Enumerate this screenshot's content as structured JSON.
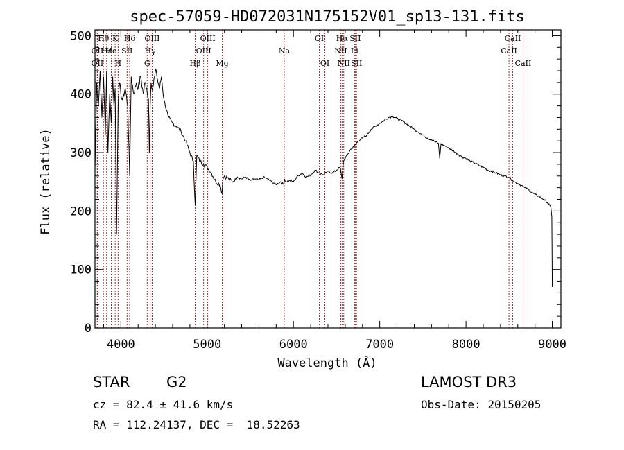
{
  "chart_data": {
    "type": "line",
    "title": "spec-57059-HD072031N175152V01_sp13-131.fits",
    "xlabel": "Wavelength (Å)",
    "ylabel": "Flux (relative)",
    "xlim": [
      3700,
      9100
    ],
    "ylim": [
      0,
      510
    ],
    "xticks": [
      4000,
      5000,
      6000,
      7000,
      8000,
      9000
    ],
    "yticks": [
      0,
      100,
      200,
      300,
      400,
      500
    ],
    "xtick_labels": [
      "4000",
      "5000",
      "6000",
      "7000",
      "8000",
      "9000"
    ],
    "ytick_labels": [
      "0",
      "100",
      "200",
      "300",
      "400",
      "500"
    ],
    "series": [
      {
        "name": "flux",
        "x": [
          3700,
          3720,
          3740,
          3760,
          3780,
          3800,
          3820,
          3835,
          3850,
          3870,
          3889,
          3905,
          3920,
          3934,
          3950,
          3968,
          3985,
          4000,
          4020,
          4050,
          4080,
          4102,
          4120,
          4150,
          4180,
          4200,
          4230,
          4260,
          4280,
          4300,
          4320,
          4330,
          4340,
          4350,
          4370,
          4390,
          4410,
          4430,
          4450,
          4470,
          4500,
          4550,
          4600,
          4650,
          4700,
          4750,
          4800,
          4840,
          4861,
          4880,
          4920,
          4960,
          5000,
          5050,
          5100,
          5150,
          5172,
          5183,
          5200,
          5250,
          5300,
          5350,
          5400,
          5450,
          5500,
          5550,
          5600,
          5650,
          5700,
          5750,
          5800,
          5850,
          5890,
          5896,
          5910,
          5950,
          6000,
          6050,
          6100,
          6150,
          6200,
          6250,
          6300,
          6350,
          6400,
          6450,
          6500,
          6540,
          6563,
          6580,
          6620,
          6660,
          6700,
          6750,
          6800,
          6850,
          6900,
          6950,
          7000,
          7050,
          7100,
          7150,
          7200,
          7250,
          7300,
          7350,
          7400,
          7450,
          7500,
          7550,
          7600,
          7650,
          7680,
          7695,
          7710,
          7750,
          7800,
          7850,
          7900,
          7950,
          8000,
          8050,
          8100,
          8150,
          8200,
          8250,
          8300,
          8350,
          8400,
          8450,
          8498,
          8520,
          8542,
          8560,
          8600,
          8640,
          8662,
          8680,
          8720,
          8760,
          8800,
          8850,
          8900,
          8940,
          8970,
          8985,
          8995,
          9000
        ],
        "values": [
          270,
          420,
          380,
          440,
          360,
          430,
          330,
          440,
          300,
          400,
          350,
          430,
          380,
          410,
          160,
          380,
          420,
          400,
          390,
          410,
          380,
          260,
          430,
          400,
          420,
          410,
          430,
          400,
          420,
          410,
          390,
          300,
          380,
          420,
          410,
          430,
          440,
          420,
          410,
          430,
          390,
          360,
          350,
          345,
          335,
          320,
          300,
          285,
          210,
          295,
          285,
          280,
          275,
          265,
          250,
          245,
          230,
          255,
          260,
          255,
          250,
          258,
          255,
          258,
          252,
          255,
          253,
          258,
          255,
          250,
          245,
          250,
          245,
          255,
          250,
          252,
          250,
          260,
          265,
          258,
          262,
          270,
          265,
          262,
          268,
          265,
          270,
          275,
          255,
          285,
          295,
          305,
          310,
          320,
          325,
          330,
          340,
          345,
          350,
          355,
          360,
          362,
          358,
          355,
          350,
          345,
          340,
          335,
          330,
          325,
          322,
          318,
          316,
          290,
          315,
          312,
          308,
          303,
          298,
          293,
          290,
          285,
          282,
          278,
          275,
          270,
          268,
          265,
          262,
          260,
          258,
          255,
          252,
          250,
          247,
          244,
          242,
          240,
          237,
          232,
          228,
          225,
          220,
          215,
          210,
          205,
          190,
          70
        ]
      }
    ],
    "spectral_lines": [
      {
        "label": "Hθ",
        "x": 3798,
        "row": 0
      },
      {
        "label": "OII",
        "x": 3727,
        "row": 1
      },
      {
        "label": "OII",
        "x": 3727,
        "row": 2
      },
      {
        "label": "Hε",
        "x": 3835,
        "row": 1
      },
      {
        "label": "He",
        "x": 3889,
        "row": 1
      },
      {
        "label": "K",
        "x": 3934,
        "row": 0
      },
      {
        "label": "H",
        "x": 3968,
        "row": 2
      },
      {
        "label": "SII",
        "x": 4072,
        "row": 1
      },
      {
        "label": "Hδ",
        "x": 4102,
        "row": 0
      },
      {
        "label": "OIII",
        "x": 4363,
        "row": 0
      },
      {
        "label": "Hγ",
        "x": 4340,
        "row": 1
      },
      {
        "label": "G",
        "x": 4305,
        "row": 2
      },
      {
        "label": "Hβ",
        "x": 4861,
        "row": 2
      },
      {
        "label": "OIII",
        "x": 5007,
        "row": 0
      },
      {
        "label": "OIII",
        "x": 4959,
        "row": 1
      },
      {
        "label": "Mg",
        "x": 5175,
        "row": 2
      },
      {
        "label": "Na",
        "x": 5893,
        "row": 1
      },
      {
        "label": "OI",
        "x": 6300,
        "row": 0
      },
      {
        "label": "OI",
        "x": 6364,
        "row": 2
      },
      {
        "label": "Hα",
        "x": 6563,
        "row": 0
      },
      {
        "label": "NII",
        "x": 6548,
        "row": 1
      },
      {
        "label": "NII",
        "x": 6583,
        "row": 2
      },
      {
        "label": "SII",
        "x": 6716,
        "row": 0
      },
      {
        "label": "Li",
        "x": 6708,
        "row": 1
      },
      {
        "label": "SII",
        "x": 6731,
        "row": 2
      },
      {
        "label": "CaII",
        "x": 8542,
        "row": 0
      },
      {
        "label": "CaII",
        "x": 8498,
        "row": 1
      },
      {
        "label": "CaII",
        "x": 8662,
        "row": 2
      }
    ],
    "line_marker_color": "#b22222",
    "series_color": "#000000"
  },
  "info": {
    "object_type": "STAR",
    "subclass": "G2",
    "survey": "LAMOST DR3",
    "cz": "cz = 82.4 ± 41.6 km/s",
    "obs_date": "Obs-Date: 20150205",
    "coords": "RA = 112.24137, DEC =  18.52263"
  }
}
